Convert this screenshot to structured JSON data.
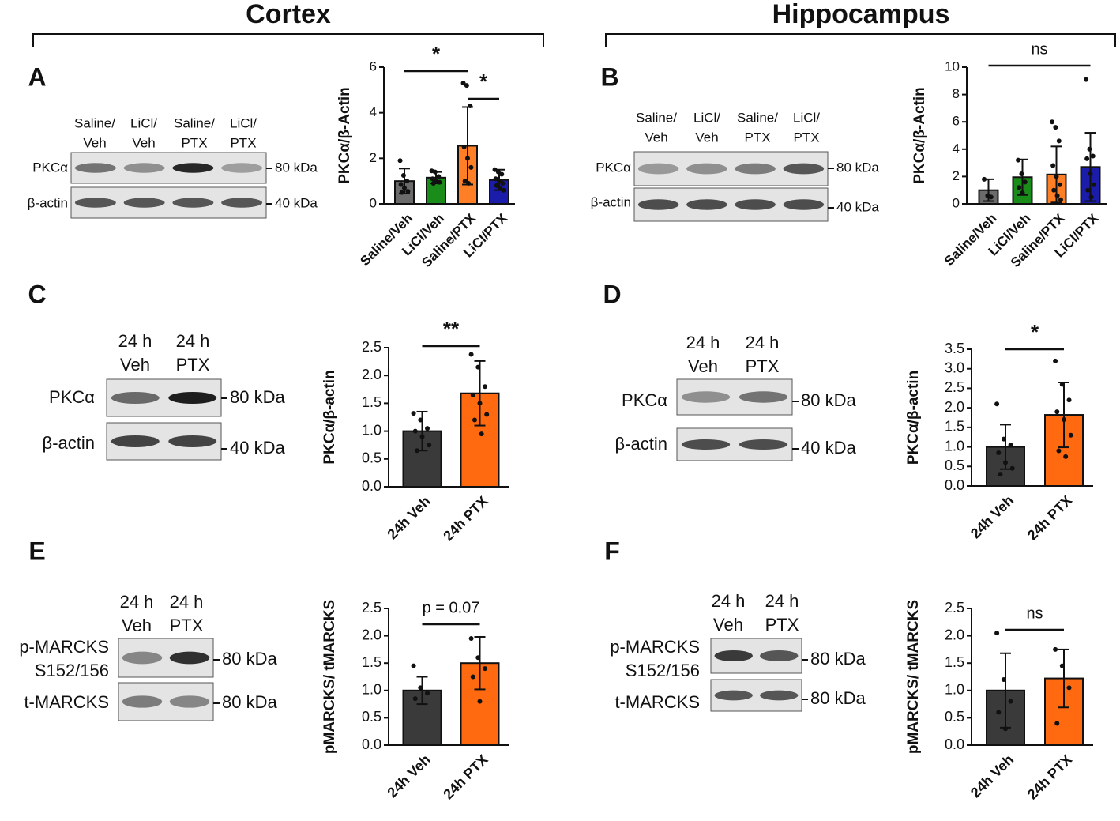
{
  "headers": [
    "Cortex",
    "Hippocampus"
  ],
  "chart_data": [
    {
      "type": "bar",
      "label": "A",
      "ylabel": "PKCα/β-Actin",
      "categories": [
        "Saline/Veh",
        "LiCl/Veh",
        "Saline/PTX",
        "LiCl/PTX"
      ],
      "values": [
        1.0,
        1.15,
        2.55,
        1.05
      ],
      "errors": [
        0.55,
        0.25,
        1.7,
        0.45
      ],
      "colors": [
        "#6b6b6b",
        "#1a8c1a",
        "#ff7f27",
        "#1c1caa"
      ],
      "points": [
        [
          1.9,
          1.25,
          1.0,
          0.85,
          0.7,
          0.55,
          0.5
        ],
        [
          1.45,
          1.4,
          1.2,
          1.1,
          1.0,
          0.95,
          0.9
        ],
        [
          5.3,
          5.2,
          4.3,
          2.5,
          2.0,
          1.6,
          1.0,
          0.9
        ],
        [
          1.5,
          1.4,
          1.3,
          1.1,
          1.0,
          0.9,
          0.8,
          0.7,
          0.6
        ]
      ],
      "ylim": [
        0,
        6
      ],
      "yticks": [
        0,
        2,
        4,
        6
      ],
      "significance": [
        {
          "between": [
            "Saline/Veh",
            "Saline/PTX"
          ],
          "label": "*"
        },
        {
          "between": [
            "Saline/PTX",
            "LiCl/PTX"
          ],
          "label": "*"
        }
      ]
    },
    {
      "type": "bar",
      "label": "B",
      "ylabel": "PKCα/β-Actin",
      "categories": [
        "Saline/Veh",
        "LiCl/Veh",
        "Saline/PTX",
        "LiCl/PTX"
      ],
      "values": [
        1.0,
        1.95,
        2.15,
        2.7
      ],
      "errors": [
        0.8,
        1.3,
        2.05,
        2.5
      ],
      "colors": [
        "#6b6b6b",
        "#1a8c1a",
        "#ff7f27",
        "#1c1caa"
      ],
      "points": [
        [
          1.8,
          0.6,
          0.5
        ],
        [
          3.2,
          2.2,
          1.6,
          1.2,
          0.8
        ],
        [
          6.0,
          5.6,
          4.6,
          2.8,
          2.0,
          1.4,
          1.0,
          0.6,
          0.3
        ],
        [
          9.1,
          4.0,
          3.5,
          3.3,
          2.2,
          1.4,
          1.0,
          0.5
        ]
      ],
      "ylim": [
        0,
        10
      ],
      "yticks": [
        0,
        2,
        4,
        6,
        8,
        10
      ],
      "significance": [
        {
          "between": [
            "Saline/Veh",
            "LiCl/PTX"
          ],
          "label": "ns"
        }
      ]
    },
    {
      "type": "bar",
      "label": "C",
      "ylabel": "PKCα/β-actin",
      "categories": [
        "24h Veh",
        "24h PTX"
      ],
      "values": [
        1.0,
        1.68
      ],
      "errors": [
        0.35,
        0.58
      ],
      "colors": [
        "#3a3a3a",
        "#ff6a10"
      ],
      "points": [
        [
          1.32,
          1.2,
          1.05,
          1.0,
          0.9,
          0.75,
          0.65
        ],
        [
          2.38,
          2.15,
          1.8,
          1.65,
          1.5,
          1.3,
          1.2,
          0.95
        ]
      ],
      "ylim": [
        0,
        2.5
      ],
      "yticks": [
        {
          "value": 0,
          "label": "0.0"
        },
        0.5,
        {
          "value": 1,
          "label": "1.0"
        },
        1.5,
        {
          "value": 2,
          "label": "2.0"
        },
        2.5
      ],
      "significance": [
        {
          "between": [
            "24h Veh",
            "24h PTX"
          ],
          "label": "**"
        }
      ]
    },
    {
      "type": "bar",
      "label": "D",
      "ylabel": "PKCα/β-actin",
      "categories": [
        "24h Veh",
        "24h PTX"
      ],
      "values": [
        1.0,
        1.82
      ],
      "errors": [
        0.57,
        0.83
      ],
      "colors": [
        "#3a3a3a",
        "#ff6a10"
      ],
      "points": [
        [
          2.1,
          1.2,
          1.05,
          0.85,
          0.6,
          0.45,
          0.3
        ],
        [
          3.2,
          2.6,
          2.2,
          1.9,
          1.7,
          1.3,
          0.9,
          0.75
        ]
      ],
      "ylim": [
        0,
        3.5
      ],
      "yticks": [
        {
          "value": 0,
          "label": "0.0"
        },
        0.5,
        {
          "value": 1,
          "label": "1.0"
        },
        1.5,
        {
          "value": 2,
          "label": "2.0"
        },
        2.5,
        {
          "value": 3,
          "label": "3.0"
        },
        3.5
      ],
      "significance": [
        {
          "between": [
            "24h Veh",
            "24h PTX"
          ],
          "label": "*"
        }
      ]
    },
    {
      "type": "bar",
      "label": "E",
      "ylabel": "pMARCKS/ tMARCKS",
      "categories": [
        "24h Veh",
        "24h PTX"
      ],
      "values": [
        1.0,
        1.5
      ],
      "errors": [
        0.25,
        0.48
      ],
      "colors": [
        "#3a3a3a",
        "#ff6a10"
      ],
      "points": [
        [
          1.45,
          1.05,
          0.95,
          0.85
        ],
        [
          1.95,
          1.6,
          1.4,
          1.25,
          0.8
        ]
      ],
      "ylim": [
        0,
        2.5
      ],
      "yticks": [
        {
          "value": 0,
          "label": "0.0"
        },
        0.5,
        {
          "value": 1,
          "label": "1.0"
        },
        1.5,
        {
          "value": 2,
          "label": "2.0"
        },
        2.5
      ],
      "significance": [
        {
          "between": [
            "24h Veh",
            "24h PTX"
          ],
          "label": "p = 0.07"
        }
      ]
    },
    {
      "type": "bar",
      "label": "F",
      "ylabel": "pMARCKS/ tMARCKS",
      "categories": [
        "24h Veh",
        "24h PTX"
      ],
      "values": [
        1.0,
        1.22
      ],
      "errors": [
        0.68,
        0.53
      ],
      "colors": [
        "#3a3a3a",
        "#ff6a10"
      ],
      "points": [
        [
          2.05,
          1.2,
          0.8,
          0.6,
          0.3
        ],
        [
          1.75,
          1.45,
          1.05,
          0.4
        ]
      ],
      "ylim": [
        0,
        2.5
      ],
      "yticks": [
        {
          "value": 0,
          "label": "0.0"
        },
        0.5,
        {
          "value": 1,
          "label": "1.0"
        },
        1.5,
        {
          "value": 2,
          "label": "2.0"
        },
        2.5
      ],
      "significance": [
        {
          "between": [
            "24h Veh",
            "24h PTX"
          ],
          "label": "ns"
        }
      ]
    }
  ],
  "blots": [
    {
      "lanes": [
        [
          "Saline/",
          "Veh"
        ],
        [
          "LiCl/",
          "Veh"
        ],
        [
          "Saline/",
          "PTX"
        ],
        [
          "LiCl/",
          "PTX"
        ]
      ],
      "rows": [
        [
          "PKCα"
        ],
        [
          "β-actin"
        ]
      ],
      "markers": [
        "80 kDa",
        "40 kDa"
      ]
    },
    {
      "lanes": [
        [
          "Saline/",
          "Veh"
        ],
        [
          "LiCl/",
          "Veh"
        ],
        [
          "Saline/",
          "PTX"
        ],
        [
          "LiCl/",
          "PTX"
        ]
      ],
      "rows": [
        [
          "PKCα"
        ],
        [
          "β-actin"
        ]
      ],
      "markers": [
        "80 kDa",
        "40 kDa"
      ]
    },
    {
      "lanes": [
        [
          "24 h",
          "Veh"
        ],
        [
          "24 h",
          "PTX"
        ]
      ],
      "rows": [
        [
          "PKCα"
        ],
        [
          "β-actin"
        ]
      ],
      "markers": [
        "80 kDa",
        "40 kDa"
      ]
    },
    {
      "lanes": [
        [
          "24 h",
          "Veh"
        ],
        [
          "24 h",
          "PTX"
        ]
      ],
      "rows": [
        [
          "PKCα"
        ],
        [
          "β-actin"
        ]
      ],
      "markers": [
        "80 kDa",
        "40 kDa"
      ]
    },
    {
      "lanes": [
        [
          "24 h",
          "Veh"
        ],
        [
          "24 h",
          "PTX"
        ]
      ],
      "rows": [
        [
          "p-MARCKS",
          "S152/156"
        ],
        [
          "t-MARCKS"
        ]
      ],
      "markers": [
        "80 kDa",
        "80 kDa"
      ]
    },
    {
      "lanes": [
        [
          "24 h",
          "Veh"
        ],
        [
          "24 h",
          "PTX"
        ]
      ],
      "rows": [
        [
          "p-MARCKS",
          "S152/156"
        ],
        [
          "t-MARCKS"
        ]
      ],
      "markers": [
        "80 kDa",
        "80 kDa"
      ]
    }
  ]
}
